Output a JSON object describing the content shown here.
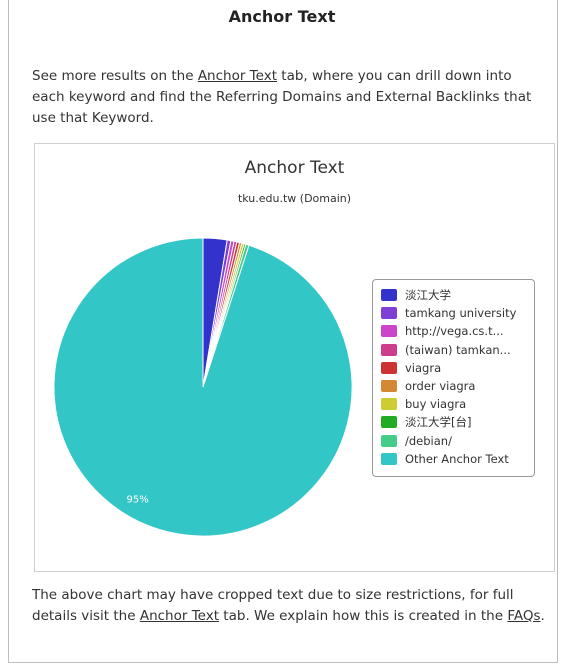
{
  "heading": "Anchor Text",
  "intro": {
    "before": "See more results on the ",
    "link": "Anchor Text",
    "after": " tab, where you can drill down into each keyword and find the Referring Domains and External Backlinks that use that Keyword."
  },
  "outro": {
    "before": "The above chart may have cropped text due to size restrictions, for full details visit the ",
    "link1": "Anchor Text",
    "middle": " tab. We explain how this is created in the ",
    "link2": "FAQs",
    "after": "."
  },
  "chart_data": {
    "type": "pie",
    "title": "Anchor Text",
    "subtitle": "tku.edu.tw (Domain)",
    "legend_position": "right",
    "slices": [
      {
        "label": "淡江大学",
        "value": 2.6,
        "color": "#3333cc"
      },
      {
        "label": "tamkang university",
        "value": 0.4,
        "color": "#7f3fd4"
      },
      {
        "label": "http://vega.cs.t...",
        "value": 0.35,
        "color": "#cc44cc"
      },
      {
        "label": "(taiwan) tamkan...",
        "value": 0.3,
        "color": "#cc3d8a"
      },
      {
        "label": "viagra",
        "value": 0.3,
        "color": "#cc3333"
      },
      {
        "label": "order viagra",
        "value": 0.25,
        "color": "#d48833"
      },
      {
        "label": "buy viagra",
        "value": 0.25,
        "color": "#cccc33"
      },
      {
        "label": "淡江大学[台]",
        "value": 0.2,
        "color": "#22aa22"
      },
      {
        "label": "/debian/",
        "value": 0.35,
        "color": "#44cc88"
      },
      {
        "label": "Other Anchor Text",
        "value": 95,
        "color": "#33c6c6",
        "data_label": "95%"
      }
    ]
  }
}
